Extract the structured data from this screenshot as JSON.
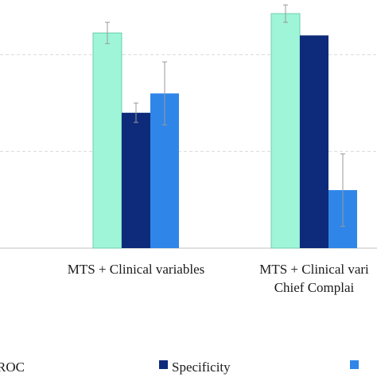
{
  "chart_data": {
    "type": "bar",
    "categories": [
      [
        "MTS + Clinical variables"
      ],
      [
        "MTS + Clinical vari",
        "Chief Complai"
      ]
    ],
    "series": [
      {
        "name": "ROC",
        "color": "#9ef5d8",
        "values": [
          0.795,
          0.835
        ],
        "error": [
          0.022,
          0.018
        ]
      },
      {
        "name": "Specificity",
        "color": "#0d2b7a",
        "values": [
          0.63,
          0.79
        ],
        "error": [
          0.02,
          0.0
        ]
      },
      {
        "name": "",
        "color": "#2f86e8",
        "values": [
          0.67,
          0.47
        ],
        "error": [
          0.065,
          0.075
        ]
      }
    ],
    "ylim": [
      0.35,
      0.85
    ],
    "grid": true,
    "legend_position": "bottom"
  }
}
